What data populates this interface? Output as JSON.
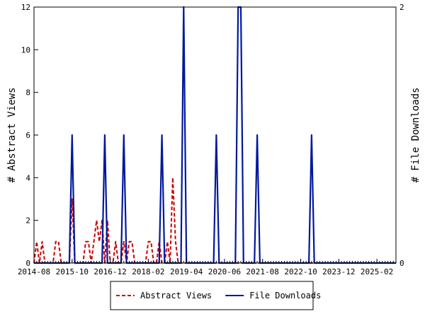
{
  "chart_data": {
    "type": "line",
    "title": "",
    "xlabel": "",
    "ylabel_left": "# Abstract Views",
    "ylabel_right": "# File Downloads",
    "ylim_left": [
      0,
      12
    ],
    "ylim_right": [
      0,
      2
    ],
    "yticks_left": [
      "0",
      "2",
      "4",
      "6",
      "8",
      "10",
      "12"
    ],
    "yticks_right": [
      "0",
      "2"
    ],
    "x_start": "2014-08",
    "x_end": "2025-09",
    "xtick_labels": [
      "2014-08",
      "2015-10",
      "2016-12",
      "2018-02",
      "2019-04",
      "2020-06",
      "2021-08",
      "2022-10",
      "2023-12",
      "2025-02"
    ],
    "grid": false,
    "legend_position": "bottom-center",
    "series": [
      {
        "name": "Abstract Views",
        "axis": "left",
        "color": "#cc0000",
        "style": "dashed",
        "points": [
          [
            "2014-08",
            0
          ],
          [
            "2014-09",
            1
          ],
          [
            "2014-10",
            0
          ],
          [
            "2014-11",
            1
          ],
          [
            "2014-12",
            0
          ],
          [
            "2015-01",
            0
          ],
          [
            "2015-02",
            0
          ],
          [
            "2015-03",
            0
          ],
          [
            "2015-04",
            1
          ],
          [
            "2015-05",
            1
          ],
          [
            "2015-06",
            0
          ],
          [
            "2015-07",
            0
          ],
          [
            "2015-08",
            0
          ],
          [
            "2015-09",
            0
          ],
          [
            "2015-10",
            3
          ],
          [
            "2015-11",
            0
          ],
          [
            "2015-12",
            0
          ],
          [
            "2016-01",
            0
          ],
          [
            "2016-02",
            0
          ],
          [
            "2016-03",
            1
          ],
          [
            "2016-04",
            1
          ],
          [
            "2016-05",
            0
          ],
          [
            "2016-06",
            1
          ],
          [
            "2016-07",
            2
          ],
          [
            "2016-08",
            1
          ],
          [
            "2016-09",
            2
          ],
          [
            "2016-10",
            0
          ],
          [
            "2016-11",
            2
          ],
          [
            "2016-12",
            0
          ],
          [
            "2017-01",
            0
          ],
          [
            "2017-02",
            1
          ],
          [
            "2017-03",
            0
          ],
          [
            "2017-04",
            0
          ],
          [
            "2017-05",
            1
          ],
          [
            "2017-06",
            0
          ],
          [
            "2017-07",
            1
          ],
          [
            "2017-08",
            1
          ],
          [
            "2017-09",
            0
          ],
          [
            "2017-10",
            0
          ],
          [
            "2017-11",
            0
          ],
          [
            "2017-12",
            0
          ],
          [
            "2018-01",
            0
          ],
          [
            "2018-02",
            1
          ],
          [
            "2018-03",
            1
          ],
          [
            "2018-04",
            0
          ],
          [
            "2018-05",
            0
          ],
          [
            "2018-06",
            1
          ],
          [
            "2018-07",
            0
          ],
          [
            "2018-08",
            0
          ],
          [
            "2018-09",
            1
          ],
          [
            "2018-10",
            0
          ],
          [
            "2018-11",
            4
          ],
          [
            "2018-12",
            1
          ],
          [
            "2018-13",
            0
          ]
        ]
      },
      {
        "name": "File Downloads",
        "axis": "right",
        "color": "#00189c",
        "style": "solid",
        "points": [
          [
            "2014-08",
            0
          ],
          [
            "2015-09",
            0
          ],
          [
            "2015-10",
            1
          ],
          [
            "2015-11",
            0
          ],
          [
            "2016-09",
            0
          ],
          [
            "2016-10",
            1
          ],
          [
            "2016-11",
            0
          ],
          [
            "2017-04",
            0
          ],
          [
            "2017-05",
            1
          ],
          [
            "2017-06",
            0
          ],
          [
            "2018-06",
            0
          ],
          [
            "2018-07",
            1
          ],
          [
            "2018-08",
            0
          ],
          [
            "2019-02",
            0
          ],
          [
            "2019-03",
            2
          ],
          [
            "2019-04",
            0
          ],
          [
            "2020-02",
            0
          ],
          [
            "2020-03",
            1
          ],
          [
            "2020-04",
            0
          ],
          [
            "2020-10",
            0
          ],
          [
            "2020-11",
            2
          ],
          [
            "2020-12",
            2
          ],
          [
            "2021-01",
            0
          ],
          [
            "2021-05",
            0
          ],
          [
            "2021-06",
            1
          ],
          [
            "2021-07",
            0
          ],
          [
            "2023-01",
            0
          ],
          [
            "2023-02",
            1
          ],
          [
            "2023-03",
            0
          ],
          [
            "2025-09",
            0
          ]
        ]
      }
    ]
  }
}
